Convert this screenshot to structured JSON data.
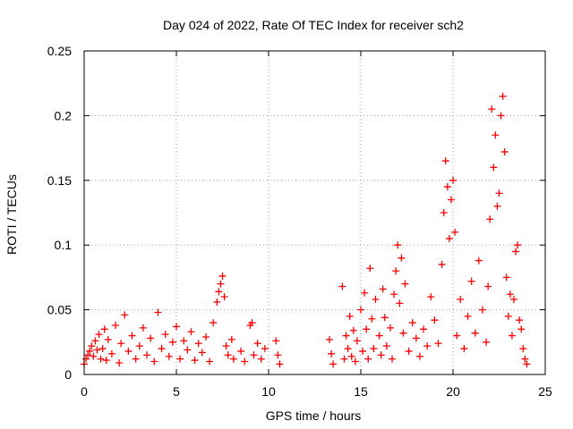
{
  "chart_data": {
    "type": "scatter",
    "title": "Day 024 of 2022, Rate Of TEC Index for receiver sch2",
    "xlabel": "GPS time / hours",
    "ylabel": "ROTI / TECUs",
    "xlim": [
      0,
      25
    ],
    "ylim": [
      0,
      0.25
    ],
    "xticks": [
      "0",
      "5",
      "10",
      "15",
      "20",
      "25"
    ],
    "yticks": [
      "0",
      "0.05",
      "0.1",
      "0.15",
      "0.2",
      "0.25"
    ],
    "grid": true,
    "marker": "+",
    "color": "#ff0000",
    "series": [
      {
        "points": [
          [
            0.0,
            0.008
          ],
          [
            0.1,
            0.012
          ],
          [
            0.2,
            0.015
          ],
          [
            0.3,
            0.018
          ],
          [
            0.4,
            0.022
          ],
          [
            0.5,
            0.014
          ],
          [
            0.6,
            0.026
          ],
          [
            0.7,
            0.019
          ],
          [
            0.8,
            0.031
          ],
          [
            0.9,
            0.012
          ],
          [
            1.0,
            0.02
          ],
          [
            1.1,
            0.035
          ],
          [
            1.2,
            0.011
          ],
          [
            1.3,
            0.027
          ],
          [
            1.5,
            0.016
          ],
          [
            1.7,
            0.038
          ],
          [
            1.9,
            0.009
          ],
          [
            2.0,
            0.024
          ],
          [
            2.2,
            0.046
          ],
          [
            2.4,
            0.018
          ],
          [
            2.6,
            0.03
          ],
          [
            2.8,
            0.012
          ],
          [
            3.0,
            0.022
          ],
          [
            3.2,
            0.036
          ],
          [
            3.4,
            0.015
          ],
          [
            3.6,
            0.028
          ],
          [
            3.8,
            0.01
          ],
          [
            4.0,
            0.048
          ],
          [
            4.2,
            0.02
          ],
          [
            4.4,
            0.031
          ],
          [
            4.6,
            0.014
          ],
          [
            4.8,
            0.025
          ],
          [
            5.0,
            0.037
          ],
          [
            5.2,
            0.012
          ],
          [
            5.4,
            0.026
          ],
          [
            5.6,
            0.019
          ],
          [
            5.8,
            0.033
          ],
          [
            6.0,
            0.011
          ],
          [
            6.2,
            0.024
          ],
          [
            6.4,
            0.017
          ],
          [
            6.6,
            0.029
          ],
          [
            6.8,
            0.01
          ],
          [
            7.0,
            0.04
          ],
          [
            7.2,
            0.056
          ],
          [
            7.3,
            0.064
          ],
          [
            7.4,
            0.07
          ],
          [
            7.5,
            0.076
          ],
          [
            7.6,
            0.06
          ],
          [
            7.7,
            0.022
          ],
          [
            7.8,
            0.015
          ],
          [
            8.0,
            0.027
          ],
          [
            8.1,
            0.012
          ],
          [
            8.5,
            0.018
          ],
          [
            8.7,
            0.01
          ],
          [
            9.0,
            0.038
          ],
          [
            9.1,
            0.04
          ],
          [
            9.2,
            0.015
          ],
          [
            9.4,
            0.024
          ],
          [
            9.6,
            0.012
          ],
          [
            9.8,
            0.02
          ],
          [
            10.4,
            0.026
          ],
          [
            10.5,
            0.015
          ],
          [
            10.6,
            0.008
          ],
          [
            13.3,
            0.027
          ],
          [
            13.4,
            0.016
          ],
          [
            13.5,
            0.008
          ],
          [
            14.0,
            0.068
          ],
          [
            14.1,
            0.012
          ],
          [
            14.2,
            0.03
          ],
          [
            14.3,
            0.02
          ],
          [
            14.4,
            0.045
          ],
          [
            14.5,
            0.014
          ],
          [
            14.6,
            0.034
          ],
          [
            14.7,
            0.01
          ],
          [
            14.8,
            0.026
          ],
          [
            15.0,
            0.05
          ],
          [
            15.1,
            0.018
          ],
          [
            15.2,
            0.063
          ],
          [
            15.3,
            0.035
          ],
          [
            15.4,
            0.012
          ],
          [
            15.5,
            0.082
          ],
          [
            15.6,
            0.043
          ],
          [
            15.7,
            0.02
          ],
          [
            15.8,
            0.058
          ],
          [
            16.0,
            0.03
          ],
          [
            16.1,
            0.015
          ],
          [
            16.2,
            0.066
          ],
          [
            16.3,
            0.044
          ],
          [
            16.4,
            0.022
          ],
          [
            16.6,
            0.036
          ],
          [
            16.7,
            0.012
          ],
          [
            16.8,
            0.062
          ],
          [
            16.9,
            0.08
          ],
          [
            17.0,
            0.1
          ],
          [
            17.1,
            0.055
          ],
          [
            17.2,
            0.09
          ],
          [
            17.3,
            0.032
          ],
          [
            17.4,
            0.07
          ],
          [
            17.6,
            0.018
          ],
          [
            17.8,
            0.04
          ],
          [
            18.0,
            0.028
          ],
          [
            18.2,
            0.014
          ],
          [
            18.4,
            0.035
          ],
          [
            18.6,
            0.022
          ],
          [
            18.8,
            0.06
          ],
          [
            19.0,
            0.042
          ],
          [
            19.2,
            0.024
          ],
          [
            19.4,
            0.085
          ],
          [
            19.5,
            0.125
          ],
          [
            19.6,
            0.165
          ],
          [
            19.7,
            0.145
          ],
          [
            19.8,
            0.105
          ],
          [
            19.9,
            0.135
          ],
          [
            20.0,
            0.15
          ],
          [
            20.1,
            0.11
          ],
          [
            20.2,
            0.03
          ],
          [
            20.4,
            0.058
          ],
          [
            20.6,
            0.02
          ],
          [
            20.8,
            0.045
          ],
          [
            21.0,
            0.072
          ],
          [
            21.2,
            0.032
          ],
          [
            21.4,
            0.088
          ],
          [
            21.6,
            0.05
          ],
          [
            21.8,
            0.025
          ],
          [
            21.9,
            0.068
          ],
          [
            22.0,
            0.12
          ],
          [
            22.1,
            0.205
          ],
          [
            22.2,
            0.16
          ],
          [
            22.3,
            0.185
          ],
          [
            22.4,
            0.13
          ],
          [
            22.5,
            0.14
          ],
          [
            22.6,
            0.2
          ],
          [
            22.7,
            0.215
          ],
          [
            22.8,
            0.172
          ],
          [
            22.9,
            0.075
          ],
          [
            23.0,
            0.045
          ],
          [
            23.1,
            0.062
          ],
          [
            23.2,
            0.03
          ],
          [
            23.3,
            0.058
          ],
          [
            23.4,
            0.095
          ],
          [
            23.5,
            0.1
          ],
          [
            23.6,
            0.042
          ],
          [
            23.7,
            0.035
          ],
          [
            23.8,
            0.02
          ],
          [
            23.9,
            0.012
          ],
          [
            24.0,
            0.008
          ]
        ]
      }
    ]
  }
}
